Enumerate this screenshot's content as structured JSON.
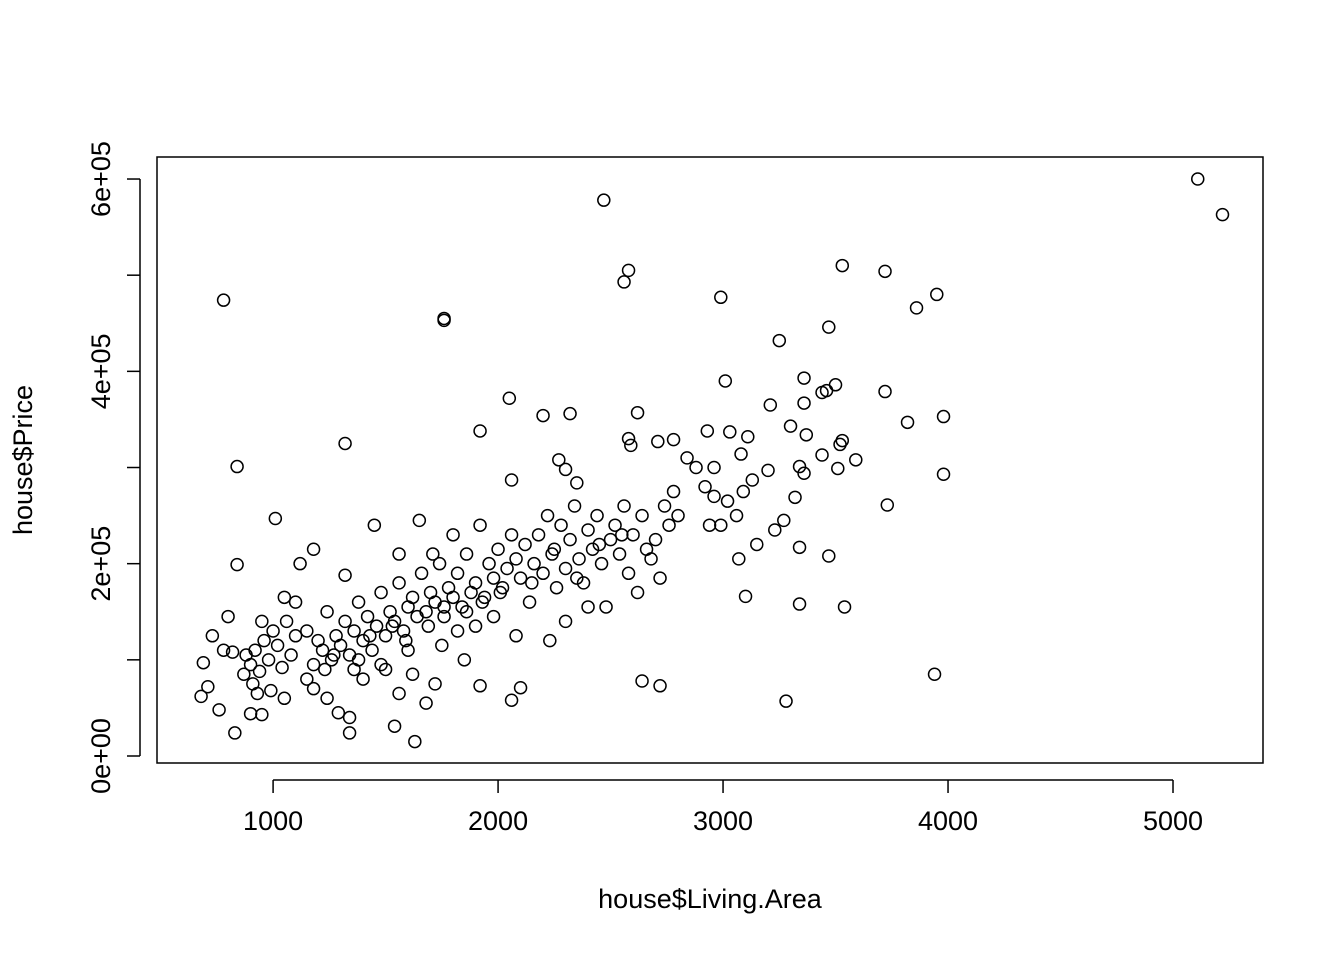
{
  "chart_data": {
    "type": "scatter",
    "xlabel": "house$Living.Area",
    "ylabel": "house$Price",
    "xlim": [
      484,
      5400
    ],
    "ylim": [
      -7280,
      622900
    ],
    "xticks": [
      1000,
      2000,
      3000,
      4000,
      5000
    ],
    "yticks": [
      {
        "value": 0,
        "label": "0e+00"
      },
      {
        "value": 100000,
        "label": null
      },
      {
        "value": 200000,
        "label": "2e+05"
      },
      {
        "value": 300000,
        "label": null
      },
      {
        "value": 400000,
        "label": "4e+05"
      },
      {
        "value": 500000,
        "label": null
      },
      {
        "value": 600000,
        "label": "6e+05"
      }
    ],
    "color": "#000000",
    "x": [
      5110,
      5220,
      2470,
      2580,
      2560,
      3530,
      3720,
      780,
      1760,
      1760,
      2990,
      3950,
      3860,
      3470,
      3250,
      3010,
      3360,
      3500,
      3440,
      3460,
      3720,
      2050,
      3210,
      3360,
      3980,
      3820,
      2200,
      2320,
      2620,
      1320,
      1920,
      2580,
      2590,
      2710,
      2780,
      2930,
      3030,
      3110,
      3300,
      3370,
      3530,
      3590,
      3440,
      3520,
      3510,
      3360,
      3980,
      840,
      2270,
      2300,
      2060,
      2350,
      1010,
      3730,
      3320,
      3340,
      2960,
      3080,
      3200,
      3130,
      840,
      3280,
      3940,
      3340,
      3540,
      3100,
      3470,
      3340,
      3070,
      2640,
      2720,
      1630,
      1340,
      830,
      1540,
      2060,
      2100,
      1920,
      680,
      760,
      710,
      900,
      950,
      880,
      900,
      920,
      940,
      960,
      980,
      1000,
      1020,
      1040,
      1060,
      1080,
      910,
      930,
      870,
      820,
      800,
      780,
      730,
      690,
      990,
      1050,
      1100,
      1120,
      1150,
      1180,
      1200,
      1220,
      1240,
      1260,
      1280,
      1300,
      1320,
      1340,
      1360,
      1380,
      1400,
      1420,
      1440,
      1460,
      1480,
      1500,
      1520,
      1540,
      1560,
      1580,
      1600,
      1620,
      1640,
      1660,
      1680,
      1700,
      1720,
      1740,
      1760,
      1780,
      1800,
      1820,
      1840,
      1860,
      1880,
      1900,
      1920,
      1940,
      1960,
      1980,
      2000,
      2020,
      2040,
      2060,
      2080,
      2100,
      2120,
      2140,
      2160,
      2180,
      2200,
      2220,
      2240,
      2260,
      2280,
      2300,
      2320,
      2340,
      2360,
      2380,
      2400,
      2420,
      2440,
      2460,
      2480,
      2500,
      2520,
      2540,
      2560,
      2580,
      2600,
      2620,
      2640,
      2660,
      2680,
      2700,
      2720,
      2740,
      2760,
      2780,
      2800,
      2840,
      2880,
      2920,
      2940,
      2960,
      2990,
      3020,
      3060,
      3090,
      3150,
      3230,
      3270,
      1240,
      1290,
      1340,
      1400,
      1500,
      1560,
      1620,
      1680,
      1720,
      1850,
      1900,
      1980,
      2080,
      2230,
      2300,
      2400,
      1180,
      1320,
      1450,
      1560,
      1650,
      1710,
      1800,
      1100,
      1180,
      1360,
      1480,
      1600,
      1750,
      1820,
      950,
      1050,
      1150,
      1230,
      1270,
      1380,
      1430,
      1530,
      1590,
      1690,
      1760,
      1860,
      1930,
      2010,
      2150,
      2250,
      2350,
      2450,
      2550
    ],
    "values": [
      600000,
      563000,
      578000,
      505000,
      493000,
      510000,
      504000,
      474000,
      455000,
      453000,
      477000,
      480000,
      466000,
      446000,
      432000,
      390000,
      393000,
      386000,
      378000,
      380000,
      379000,
      372000,
      365000,
      367000,
      353000,
      347000,
      354000,
      356000,
      357000,
      325000,
      338000,
      330000,
      323000,
      327000,
      329000,
      338000,
      337000,
      332000,
      343000,
      334000,
      328000,
      308000,
      313000,
      324000,
      299000,
      294000,
      293000,
      301000,
      308000,
      298000,
      287000,
      284000,
      247000,
      261000,
      269000,
      301000,
      300000,
      314000,
      297000,
      287000,
      199000,
      57000,
      85000,
      158000,
      155000,
      166000,
      208000,
      217000,
      205000,
      78000,
      73000,
      15000,
      24000,
      24000,
      31000,
      58000,
      71000,
      73000,
      62000,
      48000,
      72000,
      44000,
      43000,
      105000,
      95000,
      110000,
      88000,
      120000,
      100000,
      130000,
      115000,
      92000,
      140000,
      105000,
      75000,
      65000,
      85000,
      108000,
      145000,
      110000,
      125000,
      97000,
      68000,
      165000,
      160000,
      200000,
      130000,
      95000,
      120000,
      110000,
      150000,
      100000,
      125000,
      115000,
      140000,
      105000,
      130000,
      160000,
      120000,
      145000,
      110000,
      135000,
      170000,
      125000,
      150000,
      140000,
      180000,
      130000,
      155000,
      165000,
      145000,
      190000,
      150000,
      170000,
      160000,
      200000,
      145000,
      175000,
      165000,
      190000,
      155000,
      210000,
      170000,
      180000,
      240000,
      165000,
      200000,
      185000,
      215000,
      175000,
      195000,
      230000,
      205000,
      185000,
      220000,
      160000,
      200000,
      230000,
      190000,
      250000,
      210000,
      175000,
      240000,
      195000,
      225000,
      260000,
      205000,
      180000,
      235000,
      215000,
      250000,
      200000,
      155000,
      225000,
      240000,
      210000,
      260000,
      190000,
      230000,
      170000,
      250000,
      215000,
      205000,
      225000,
      185000,
      260000,
      240000,
      275000,
      250000,
      310000,
      300000,
      280000,
      240000,
      270000,
      240000,
      265000,
      250000,
      275000,
      220000,
      235000,
      245000,
      60000,
      45000,
      40000,
      80000,
      90000,
      65000,
      85000,
      55000,
      75000,
      100000,
      135000,
      145000,
      125000,
      120000,
      140000,
      155000,
      215000,
      188000,
      240000,
      210000,
      245000,
      210000,
      230000,
      125000,
      70000,
      90000,
      95000,
      110000,
      115000,
      130000,
      140000,
      60000,
      80000,
      90000,
      105000,
      100000,
      125000,
      135000,
      120000,
      135000,
      155000,
      150000,
      160000,
      170000,
      180000,
      215000,
      185000,
      220000,
      230000
    ]
  }
}
